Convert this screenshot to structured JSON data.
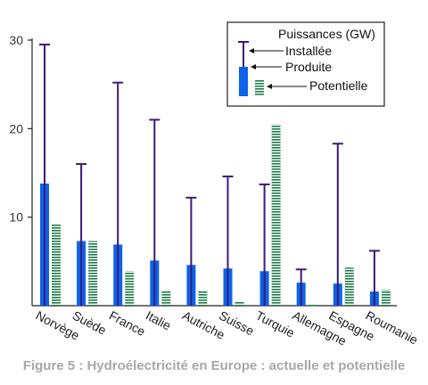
{
  "caption": "Figure 5 : Hydroélectricité en Europe : actuelle et potentielle",
  "chart_data": {
    "type": "bar",
    "categories": [
      "Norvège",
      "Suède",
      "France",
      "Italie",
      "Autriche",
      "Suisse",
      "Turquie",
      "Allemagne",
      "Espagne",
      "Roumanie"
    ],
    "legend_title": "Puissances (GW)",
    "series": [
      {
        "name": "Installée",
        "style": "line-with-cap",
        "color": "#3b1a7a",
        "values": [
          29.5,
          16.0,
          25.2,
          21.0,
          12.2,
          14.6,
          13.7,
          4.1,
          18.3,
          6.2
        ]
      },
      {
        "name": "Produite",
        "style": "solid-bar",
        "color": "#0d63e8",
        "values": [
          13.8,
          7.3,
          6.9,
          5.1,
          4.6,
          4.2,
          3.9,
          2.6,
          2.5,
          1.6
        ]
      },
      {
        "name": "Potentielle",
        "style": "hatched-bar",
        "color": "#1e7a4a",
        "values": [
          9.3,
          7.3,
          3.9,
          1.7,
          1.7,
          0.5,
          20.5,
          0.1,
          4.3,
          1.8
        ]
      }
    ],
    "yticks": [
      10,
      20,
      30
    ],
    "ylim": [
      0,
      30
    ],
    "legend_position": "top-right",
    "grid": false
  }
}
